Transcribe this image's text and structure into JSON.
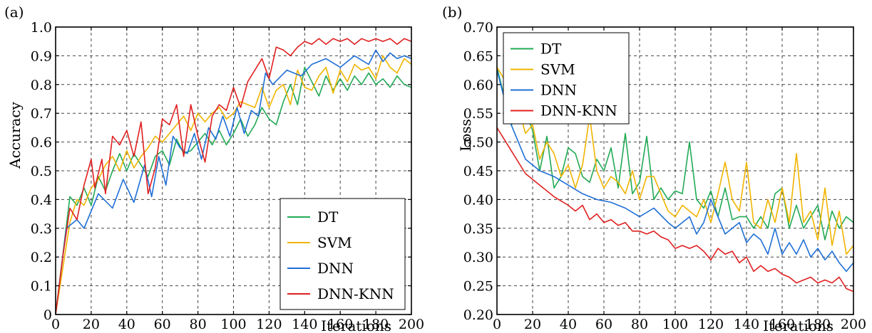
{
  "chart_data": [
    {
      "type": "line",
      "panel_label": "(a)",
      "xlabel": "Iterations",
      "ylabel": "Accuracy",
      "xlim": [
        0,
        200
      ],
      "ylim": [
        0,
        1.0
      ],
      "x_ticks": [
        "0",
        "20",
        "40",
        "60",
        "80",
        "100",
        "120",
        "140",
        "160",
        "180",
        "200"
      ],
      "y_ticks": [
        "0",
        "0.1",
        "0.2",
        "0.3",
        "0.4",
        "0.5",
        "0.6",
        "0.7",
        "0.8",
        "0.9",
        "1.0"
      ],
      "grid": true,
      "legend_position": "bottom-right",
      "series": [
        {
          "name": "DT",
          "color": "#22aa55",
          "x": [
            0,
            8,
            12,
            16,
            20,
            24,
            28,
            32,
            36,
            40,
            44,
            48,
            52,
            56,
            60,
            64,
            68,
            72,
            76,
            80,
            84,
            88,
            92,
            96,
            100,
            104,
            108,
            112,
            116,
            120,
            124,
            128,
            132,
            136,
            140,
            144,
            148,
            152,
            156,
            160,
            164,
            168,
            172,
            176,
            180,
            184,
            188,
            192,
            196,
            200
          ],
          "y": [
            0.0,
            0.41,
            0.38,
            0.44,
            0.38,
            0.48,
            0.43,
            0.5,
            0.56,
            0.5,
            0.56,
            0.52,
            0.48,
            0.55,
            0.57,
            0.52,
            0.61,
            0.56,
            0.57,
            0.6,
            0.63,
            0.59,
            0.64,
            0.59,
            0.63,
            0.68,
            0.62,
            0.66,
            0.72,
            0.68,
            0.66,
            0.74,
            0.8,
            0.73,
            0.86,
            0.81,
            0.76,
            0.83,
            0.78,
            0.82,
            0.78,
            0.83,
            0.8,
            0.84,
            0.8,
            0.82,
            0.79,
            0.83,
            0.8,
            0.79
          ]
        },
        {
          "name": "SVM",
          "color": "#f0b400",
          "x": [
            0,
            8,
            12,
            16,
            20,
            24,
            28,
            32,
            36,
            40,
            44,
            48,
            52,
            56,
            60,
            64,
            68,
            72,
            76,
            80,
            84,
            88,
            92,
            96,
            100,
            104,
            108,
            112,
            116,
            120,
            124,
            128,
            132,
            136,
            140,
            144,
            148,
            152,
            156,
            160,
            164,
            168,
            172,
            176,
            180,
            184,
            188,
            192,
            196,
            200
          ],
          "y": [
            0.0,
            0.32,
            0.4,
            0.38,
            0.44,
            0.47,
            0.52,
            0.55,
            0.5,
            0.57,
            0.51,
            0.55,
            0.58,
            0.62,
            0.6,
            0.63,
            0.66,
            0.69,
            0.64,
            0.7,
            0.67,
            0.7,
            0.72,
            0.68,
            0.7,
            0.74,
            0.73,
            0.72,
            0.79,
            0.72,
            0.78,
            0.8,
            0.73,
            0.85,
            0.79,
            0.78,
            0.83,
            0.86,
            0.77,
            0.85,
            0.81,
            0.87,
            0.85,
            0.86,
            0.82,
            0.9,
            0.86,
            0.84,
            0.89,
            0.87
          ]
        },
        {
          "name": "DNN",
          "color": "#1f6fd6",
          "x": [
            0,
            6,
            12,
            16,
            20,
            24,
            32,
            38,
            44,
            50,
            54,
            58,
            62,
            66,
            70,
            74,
            78,
            82,
            86,
            90,
            94,
            98,
            102,
            106,
            110,
            114,
            118,
            122,
            130,
            138,
            144,
            152,
            160,
            168,
            176,
            180,
            184,
            188,
            192,
            196,
            200
          ],
          "y": [
            0.0,
            0.3,
            0.33,
            0.3,
            0.36,
            0.42,
            0.37,
            0.47,
            0.39,
            0.52,
            0.41,
            0.55,
            0.45,
            0.62,
            0.58,
            0.56,
            0.63,
            0.54,
            0.65,
            0.61,
            0.69,
            0.62,
            0.72,
            0.63,
            0.71,
            0.69,
            0.84,
            0.8,
            0.85,
            0.83,
            0.87,
            0.89,
            0.86,
            0.9,
            0.87,
            0.92,
            0.88,
            0.91,
            0.89,
            0.9,
            0.89
          ]
        },
        {
          "name": "DNN-KNN",
          "color": "#e02020",
          "x": [
            0,
            4,
            8,
            12,
            16,
            20,
            22,
            26,
            28,
            32,
            36,
            40,
            44,
            48,
            52,
            56,
            60,
            64,
            68,
            72,
            76,
            80,
            84,
            88,
            92,
            96,
            100,
            104,
            108,
            112,
            116,
            120,
            124,
            128,
            132,
            136,
            140,
            144,
            148,
            152,
            156,
            160,
            164,
            168,
            172,
            176,
            180,
            184,
            188,
            192,
            196,
            200
          ],
          "y": [
            0.0,
            0.2,
            0.37,
            0.33,
            0.45,
            0.54,
            0.44,
            0.54,
            0.42,
            0.62,
            0.59,
            0.64,
            0.55,
            0.67,
            0.42,
            0.51,
            0.68,
            0.66,
            0.73,
            0.55,
            0.73,
            0.62,
            0.53,
            0.69,
            0.73,
            0.71,
            0.79,
            0.72,
            0.81,
            0.85,
            0.89,
            0.82,
            0.93,
            0.92,
            0.9,
            0.93,
            0.95,
            0.94,
            0.96,
            0.94,
            0.96,
            0.95,
            0.96,
            0.94,
            0.96,
            0.95,
            0.96,
            0.95,
            0.96,
            0.94,
            0.96,
            0.95
          ]
        }
      ]
    },
    {
      "type": "line",
      "panel_label": "(b)",
      "xlabel": "Iterations",
      "ylabel": "Loss",
      "xlim": [
        0,
        200
      ],
      "ylim": [
        0.2,
        0.7
      ],
      "x_ticks": [
        "0",
        "20",
        "40",
        "60",
        "80",
        "100",
        "120",
        "140",
        "160",
        "180",
        "200"
      ],
      "y_ticks": [
        "0.20",
        "0.25",
        "0.30",
        "0.35",
        "0.40",
        "0.45",
        "0.50",
        "0.55",
        "0.60",
        "0.65",
        "0.70"
      ],
      "grid": true,
      "legend_position": "top-left",
      "series": [
        {
          "name": "DT",
          "color": "#22aa55",
          "x": [
            0,
            8,
            12,
            16,
            20,
            24,
            28,
            32,
            36,
            40,
            44,
            48,
            52,
            56,
            60,
            64,
            68,
            72,
            76,
            80,
            84,
            88,
            92,
            96,
            100,
            104,
            108,
            112,
            116,
            120,
            124,
            128,
            132,
            136,
            140,
            144,
            148,
            152,
            156,
            160,
            164,
            168,
            172,
            176,
            180,
            184,
            188,
            192,
            196,
            200
          ],
          "y": [
            0.63,
            0.53,
            0.54,
            0.555,
            0.52,
            0.45,
            0.51,
            0.42,
            0.44,
            0.49,
            0.48,
            0.44,
            0.43,
            0.47,
            0.45,
            0.49,
            0.42,
            0.515,
            0.41,
            0.43,
            0.51,
            0.4,
            0.42,
            0.4,
            0.415,
            0.41,
            0.5,
            0.4,
            0.385,
            0.415,
            0.37,
            0.42,
            0.365,
            0.37,
            0.37,
            0.35,
            0.37,
            0.35,
            0.41,
            0.42,
            0.35,
            0.39,
            0.35,
            0.37,
            0.39,
            0.33,
            0.38,
            0.35,
            0.37,
            0.36
          ]
        },
        {
          "name": "SVM",
          "color": "#f0b400",
          "x": [
            0,
            8,
            12,
            16,
            20,
            24,
            28,
            32,
            36,
            40,
            44,
            48,
            52,
            56,
            60,
            64,
            68,
            72,
            76,
            80,
            84,
            88,
            92,
            96,
            100,
            104,
            108,
            112,
            116,
            120,
            124,
            128,
            132,
            136,
            140,
            144,
            148,
            152,
            156,
            160,
            164,
            168,
            172,
            176,
            180,
            184,
            188,
            192,
            196,
            200
          ],
          "y": [
            0.63,
            0.59,
            0.56,
            0.515,
            0.53,
            0.47,
            0.5,
            0.48,
            0.44,
            0.46,
            0.42,
            0.46,
            0.545,
            0.45,
            0.42,
            0.44,
            0.43,
            0.41,
            0.45,
            0.4,
            0.44,
            0.44,
            0.41,
            0.38,
            0.37,
            0.39,
            0.38,
            0.37,
            0.4,
            0.36,
            0.41,
            0.465,
            0.4,
            0.38,
            0.465,
            0.36,
            0.35,
            0.4,
            0.36,
            0.42,
            0.36,
            0.48,
            0.36,
            0.38,
            0.33,
            0.42,
            0.32,
            0.38,
            0.305,
            0.32
          ]
        },
        {
          "name": "DNN",
          "color": "#1f6fd6",
          "x": [
            0,
            8,
            16,
            24,
            32,
            40,
            48,
            56,
            64,
            72,
            80,
            88,
            96,
            100,
            108,
            112,
            116,
            120,
            128,
            136,
            140,
            144,
            148,
            152,
            156,
            160,
            164,
            168,
            172,
            176,
            180,
            184,
            188,
            192,
            196,
            200
          ],
          "y": [
            0.625,
            0.53,
            0.47,
            0.45,
            0.44,
            0.425,
            0.41,
            0.4,
            0.395,
            0.385,
            0.37,
            0.385,
            0.36,
            0.35,
            0.37,
            0.34,
            0.36,
            0.4,
            0.34,
            0.36,
            0.325,
            0.34,
            0.33,
            0.305,
            0.35,
            0.305,
            0.325,
            0.305,
            0.33,
            0.3,
            0.315,
            0.295,
            0.31,
            0.29,
            0.275,
            0.29
          ]
        },
        {
          "name": "DNN-KNN",
          "color": "#e02020",
          "x": [
            0,
            8,
            16,
            24,
            32,
            40,
            44,
            48,
            52,
            56,
            60,
            64,
            68,
            72,
            76,
            80,
            84,
            88,
            92,
            96,
            100,
            104,
            108,
            112,
            116,
            120,
            124,
            128,
            132,
            136,
            140,
            144,
            148,
            152,
            156,
            160,
            164,
            168,
            172,
            176,
            180,
            184,
            188,
            192,
            196,
            200
          ],
          "y": [
            0.525,
            0.485,
            0.445,
            0.425,
            0.405,
            0.39,
            0.38,
            0.39,
            0.365,
            0.375,
            0.36,
            0.365,
            0.355,
            0.36,
            0.345,
            0.345,
            0.34,
            0.345,
            0.335,
            0.33,
            0.315,
            0.32,
            0.315,
            0.32,
            0.31,
            0.295,
            0.315,
            0.305,
            0.31,
            0.29,
            0.3,
            0.275,
            0.285,
            0.275,
            0.28,
            0.27,
            0.265,
            0.255,
            0.26,
            0.265,
            0.255,
            0.26,
            0.255,
            0.265,
            0.245,
            0.24
          ]
        }
      ]
    }
  ]
}
